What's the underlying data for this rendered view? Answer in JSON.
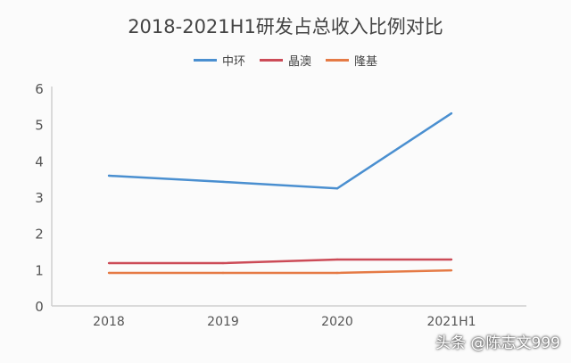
{
  "chart_data": {
    "type": "line",
    "title": "2018-2021H1研发占总收入比例对比",
    "categories": [
      "2018",
      "2019",
      "2020",
      "2021H1"
    ],
    "series": [
      {
        "name": "中环",
        "color": "#4a8fd0",
        "values": [
          3.59,
          3.42,
          3.24,
          5.31
        ]
      },
      {
        "name": "晶澳",
        "color": "#cc4b57",
        "values": [
          1.18,
          1.18,
          1.28,
          1.28
        ]
      },
      {
        "name": "隆基",
        "color": "#e57a45",
        "values": [
          0.91,
          0.91,
          0.91,
          0.98
        ]
      }
    ],
    "ylim": [
      0,
      6
    ],
    "yticks": [
      "0",
      "1",
      "2",
      "3",
      "4",
      "5",
      "6"
    ],
    "grid": false,
    "legend": "top"
  },
  "watermark": "头条 @陈志文999"
}
